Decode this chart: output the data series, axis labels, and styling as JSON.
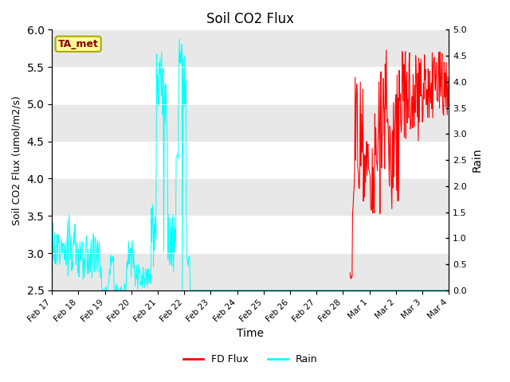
{
  "title": "Soil CO2 Flux",
  "ylabel_left": "Soil CO2 Flux (umol/m2/s)",
  "ylabel_right": "Rain",
  "xlabel": "Time",
  "ylim_left": [
    2.5,
    6.0
  ],
  "ylim_right": [
    0.0,
    5.0
  ],
  "annotation_text": "TA_met",
  "annotation_box_facecolor": "#ffff99",
  "annotation_text_color": "#8b0000",
  "annotation_edge_color": "#aaaa00",
  "fd_flux_color": "#ff0000",
  "rain_color": "#00ffff",
  "legend_fd_label": "FD Flux",
  "legend_rain_label": "Rain",
  "bg_band_color": "#e8e8e8",
  "xtick_labels": [
    "Feb 17",
    "Feb 18",
    "Feb 19",
    "Feb 20",
    "Feb 21",
    "Feb 22",
    "Feb 23",
    "Feb 24",
    "Feb 25",
    "Feb 26",
    "Feb 27",
    "Feb 28",
    "Mar 1",
    "Mar 2",
    "Mar 3",
    "Mar 4"
  ],
  "ytick_left": [
    2.5,
    3.0,
    3.5,
    4.0,
    4.5,
    5.0,
    5.5,
    6.0
  ],
  "ytick_right": [
    0.0,
    0.5,
    1.0,
    1.5,
    2.0,
    2.5,
    3.0,
    3.5,
    4.0,
    4.5,
    5.0
  ],
  "n_points_per_day": 48,
  "n_days": 16
}
